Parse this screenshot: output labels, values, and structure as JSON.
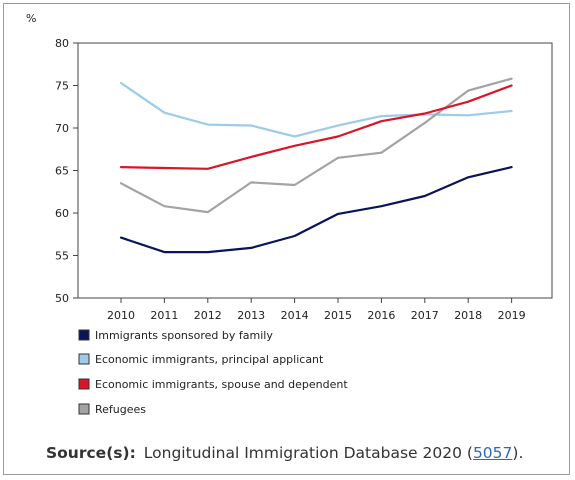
{
  "chart_data": {
    "type": "line",
    "y_unit_label": "%",
    "ylim": [
      50,
      80
    ],
    "yticks": [
      50,
      55,
      60,
      65,
      70,
      75,
      80
    ],
    "categories": [
      "2010",
      "2011",
      "2012",
      "2013",
      "2014",
      "2015",
      "2016",
      "2017",
      "2018",
      "2019"
    ],
    "grid": false,
    "legend_position": "bottom-left",
    "series": [
      {
        "name": "Immigrants sponsored by family",
        "color": "#0b1457",
        "values": [
          57.1,
          55.4,
          55.4,
          55.9,
          57.3,
          59.9,
          60.8,
          62.0,
          64.2,
          65.4
        ]
      },
      {
        "name": "Economic immigrants, principal applicant",
        "color": "#9ecbe8",
        "values": [
          75.3,
          71.8,
          70.4,
          70.3,
          69.0,
          70.3,
          71.4,
          71.6,
          71.5,
          72.0
        ]
      },
      {
        "name": "Economic immigrants, spouse and dependent",
        "color": "#d9152a",
        "values": [
          65.4,
          65.3,
          65.2,
          66.6,
          67.9,
          69.0,
          70.8,
          71.7,
          73.1,
          75.0
        ]
      },
      {
        "name": "Refugees",
        "color": "#a3a3a3",
        "values": [
          63.5,
          60.8,
          60.1,
          63.6,
          63.3,
          66.5,
          67.1,
          70.6,
          74.4,
          75.8
        ]
      }
    ]
  },
  "source": {
    "label": "Source(s):",
    "text": "Longitudinal Immigration Database 2020 (",
    "link": "5057",
    "suffix": ")."
  }
}
